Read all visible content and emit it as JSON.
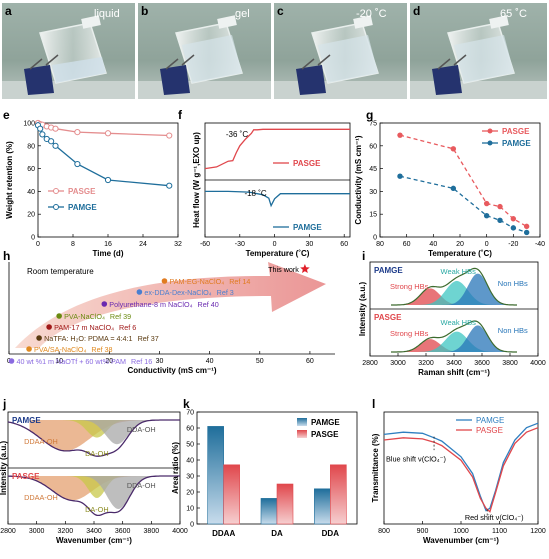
{
  "colors": {
    "pasge": "#e0474c",
    "pamge": "#1f6e9b",
    "star": "#e0202a"
  },
  "photos": {
    "a": {
      "letter": "a",
      "label": "liquid"
    },
    "b": {
      "letter": "b",
      "label": "gel"
    },
    "c": {
      "letter": "c",
      "label": "-20 ˚C"
    },
    "d": {
      "letter": "d",
      "label": "65 ˚C"
    }
  },
  "chart_data": [
    {
      "panel": "e",
      "type": "line",
      "xlabel": "Time (d)",
      "ylabel": "Weight retention (%)",
      "xlim": [
        0,
        32
      ],
      "ylim": [
        0,
        100
      ],
      "xticks": [
        0,
        8,
        16,
        24,
        32
      ],
      "yticks": [
        0,
        20,
        40,
        60,
        80,
        100
      ],
      "series": [
        {
          "name": "PASGE",
          "x": [
            0,
            0.5,
            1,
            2,
            3,
            4,
            9,
            16,
            30
          ],
          "y": [
            100,
            99,
            98.5,
            97,
            96,
            95,
            92,
            91,
            89
          ]
        },
        {
          "name": "PAMGE",
          "x": [
            0,
            0.5,
            1,
            2,
            3,
            4,
            9,
            16,
            30
          ],
          "y": [
            98,
            95,
            90,
            86,
            84,
            80,
            64,
            50,
            45
          ]
        }
      ]
    },
    {
      "panel": "f",
      "type": "line",
      "xlabel": "Temperature (˚C)",
      "ylabel": "Heat flow (W g⁻¹,EXO up)",
      "xlim": [
        -60,
        65
      ],
      "xticks": [
        -60,
        -30,
        0,
        30,
        60
      ],
      "annotations": [
        "-36 ˚C",
        "-18 ˚C"
      ],
      "series": [
        {
          "name": "PASGE",
          "x": [
            -60,
            -50,
            -40,
            -36,
            -33,
            -30,
            -25,
            -20,
            -18,
            -15,
            -10,
            0,
            30,
            65
          ],
          "y": [
            0.2,
            0.23,
            0.33,
            0.34,
            0.48,
            0.6,
            0.72,
            0.82,
            0.88,
            0.88,
            0.89,
            0.89,
            0.89,
            0.89
          ]
        },
        {
          "name": "PAMGE",
          "x": [
            -60,
            -40,
            -25,
            -20,
            -18,
            -15,
            -10,
            -5,
            -3,
            0,
            5,
            30,
            65
          ],
          "y": [
            -0.2,
            -0.2,
            -0.21,
            -0.22,
            -0.23,
            -0.24,
            -0.26,
            -0.32,
            -0.45,
            -0.33,
            -0.24,
            -0.24,
            -0.24
          ]
        }
      ]
    },
    {
      "panel": "g",
      "type": "line",
      "xlabel": "Temperature (˚C)",
      "ylabel": "Conductivity (mS cm⁻¹)",
      "xlim": [
        80,
        -40
      ],
      "ylim": [
        0,
        75
      ],
      "xticks": [
        80,
        60,
        40,
        20,
        0,
        -20,
        -40
      ],
      "yticks": [
        0,
        15,
        30,
        45,
        60,
        75
      ],
      "series": [
        {
          "name": "PASGE",
          "x": [
            65,
            25,
            0,
            -10,
            -20,
            -30
          ],
          "y": [
            67,
            58,
            22,
            20,
            12,
            7
          ]
        },
        {
          "name": "PAMGE",
          "x": [
            65,
            25,
            0,
            -10,
            -20,
            -30
          ],
          "y": [
            40,
            32,
            14,
            11,
            6,
            3
          ]
        }
      ]
    },
    {
      "panel": "h",
      "type": "scatter",
      "title": "Room temperature",
      "xlabel": "Conductivity (mS cm⁻¹)",
      "xlim": [
        0,
        65
      ],
      "xticks": [
        0,
        10,
        20,
        30,
        40,
        50,
        60
      ],
      "points": [
        {
          "label": "This work",
          "ref": "",
          "x": 59,
          "color": "#e0202a",
          "marker": "star"
        },
        {
          "label": "PAM-EG-NaClO₄",
          "ref": "Ref 14",
          "x": 31,
          "color": "#e07b20",
          "marker": "circle"
        },
        {
          "label": "ex-DDA-Dex-NaClO₄",
          "ref": "Ref 3",
          "x": 26,
          "color": "#4a7fd0",
          "marker": "circle"
        },
        {
          "label": "Polyurethane-8 m NaClO₄",
          "ref": "Ref 40",
          "x": 19,
          "color": "#6a2ab0",
          "marker": "circle"
        },
        {
          "label": "PVA-NaClO₄",
          "ref": "Ref 39",
          "x": 10,
          "color": "#6a8a10",
          "marker": "circle"
        },
        {
          "label": "PAM-17 m NaClO₄",
          "ref": "Ref 6",
          "x": 8,
          "color": "#a01818",
          "marker": "circle"
        },
        {
          "label": "NaTFA: H₂O: PDMA = 4:4:1",
          "ref": "Ref 37",
          "x": 6,
          "color": "#5a3a10",
          "marker": "circle"
        },
        {
          "label": "PVA/SA-NaClO₄",
          "ref": "Ref 38",
          "x": 4,
          "color": "#e08a20",
          "marker": "circle"
        },
        {
          "label": "40 wt %1 m NaOTf + 60 wt% PAM",
          "ref": "Ref 16",
          "x": 0.5,
          "color": "#8a6ae0",
          "marker": "circle"
        }
      ]
    },
    {
      "panel": "i",
      "type": "area",
      "xlabel": "Raman shift (cm⁻¹)",
      "ylabel": "Intensity (a.u.)",
      "xlim": [
        2800,
        4000
      ],
      "xticks": [
        2800,
        3000,
        3200,
        3400,
        3600,
        3800,
        4000
      ],
      "subplots": [
        {
          "name": "PAMGE",
          "labels": [
            "Weak HBs",
            "Strong HBs",
            "Non HBs"
          ]
        },
        {
          "name": "PASGE",
          "labels": [
            "Weak HBs",
            "Strong HBs",
            "Non HBs"
          ]
        }
      ]
    },
    {
      "panel": "j",
      "type": "area",
      "xlabel": "Wavenumber (cm⁻¹)",
      "ylabel": "Intensity (a.u.)",
      "xlim": [
        2800,
        4000
      ],
      "xticks": [
        2800,
        3000,
        3200,
        3400,
        3600,
        3800,
        4000
      ],
      "subplots": [
        {
          "name": "PAMGE",
          "labels": [
            "DDAA-OH",
            "DA-OH",
            "DDA-OH"
          ]
        },
        {
          "name": "PASGE",
          "labels": [
            "DDAA-OH",
            "DA-OH",
            "DDA-OH"
          ]
        }
      ]
    },
    {
      "panel": "k",
      "type": "bar",
      "ylabel": "Area ratio (%)",
      "categories": [
        "DDAA",
        "DA",
        "DDA"
      ],
      "ylim": [
        0,
        70
      ],
      "yticks": [
        0,
        10,
        20,
        30,
        40,
        50,
        60,
        70
      ],
      "series": [
        {
          "name": "PAMGE",
          "values": [
            61,
            16,
            22
          ]
        },
        {
          "name": "PASGE",
          "values": [
            37,
            25,
            37
          ]
        }
      ]
    },
    {
      "panel": "l",
      "type": "line",
      "xlabel": "Wavenumber (cm⁻¹)",
      "ylabel": "Transmittance (%)",
      "xlim": [
        800,
        1200
      ],
      "xticks": [
        800,
        900,
        1000,
        1100,
        1200
      ],
      "annotations": [
        "Blue shift ν(ClO₄⁻)",
        "Red shift ν(ClO₄⁻)"
      ],
      "series": [
        {
          "name": "PAMGE",
          "x": [
            800,
            850,
            900,
            930,
            950,
            1000,
            1030,
            1050,
            1065,
            1075,
            1090,
            1110,
            1140,
            1170,
            1200
          ],
          "y": [
            0.8,
            0.82,
            0.81,
            0.77,
            0.74,
            0.6,
            0.45,
            0.25,
            0.12,
            0.14,
            0.3,
            0.55,
            0.75,
            0.86,
            0.9
          ]
        },
        {
          "name": "PASGE",
          "x": [
            800,
            850,
            900,
            930,
            950,
            1000,
            1030,
            1050,
            1065,
            1075,
            1090,
            1110,
            1140,
            1170,
            1200
          ],
          "y": [
            0.75,
            0.77,
            0.76,
            0.73,
            0.7,
            0.57,
            0.42,
            0.23,
            0.14,
            0.11,
            0.28,
            0.52,
            0.72,
            0.82,
            0.86
          ]
        }
      ]
    }
  ]
}
